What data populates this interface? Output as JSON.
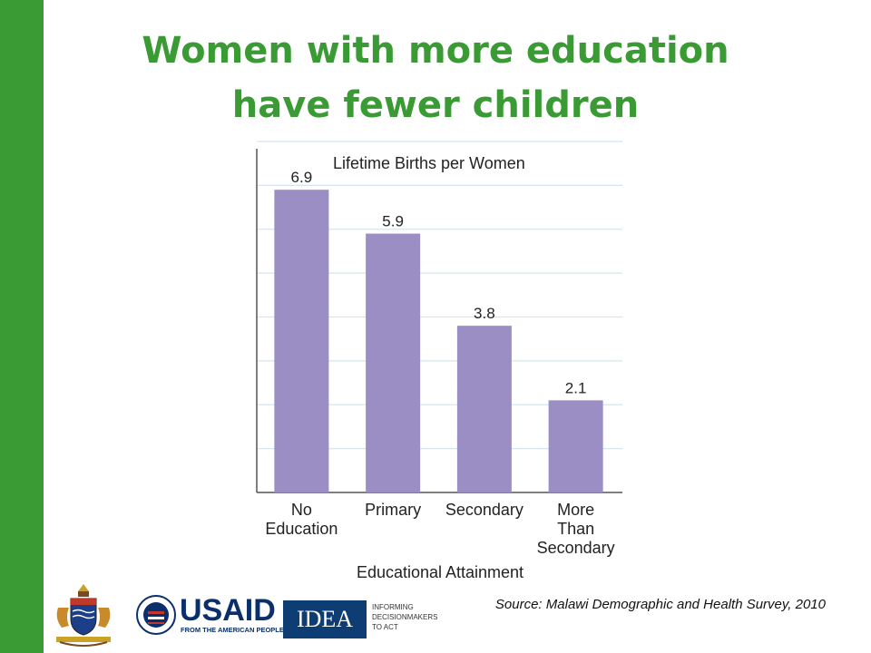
{
  "colors": {
    "accent_green": "#3a9b35",
    "bar_purple": "#9b8ec4",
    "grid": "#d7e6ee"
  },
  "slide": {
    "title_line1": "Women with more education",
    "title_line2": "have fewer children",
    "source": "Source: Malawi Demographic and Health Survey, 2010"
  },
  "logos": {
    "usaid_name": "USAID",
    "usaid_tagline": "FROM THE AMERICAN PEOPLE",
    "idea_name": "IDEA",
    "idea_tagline": [
      "INFORMING",
      "DECISIONMAKERS",
      "TO ACT"
    ]
  },
  "chart_data": {
    "type": "bar",
    "title": "Lifetime Births per Women",
    "xlabel": "Educational Attainment",
    "ylabel": "",
    "categories": [
      [
        "No",
        "Education"
      ],
      [
        "Primary"
      ],
      [
        "Secondary"
      ],
      [
        "More",
        "Than",
        "Secondary"
      ]
    ],
    "values": [
      6.9,
      5.9,
      3.8,
      2.1
    ],
    "value_labels": [
      "6.9",
      "5.9",
      "3.8",
      "2.1"
    ],
    "ylim": [
      0,
      8
    ],
    "grid": true,
    "gridline_step": 1
  }
}
